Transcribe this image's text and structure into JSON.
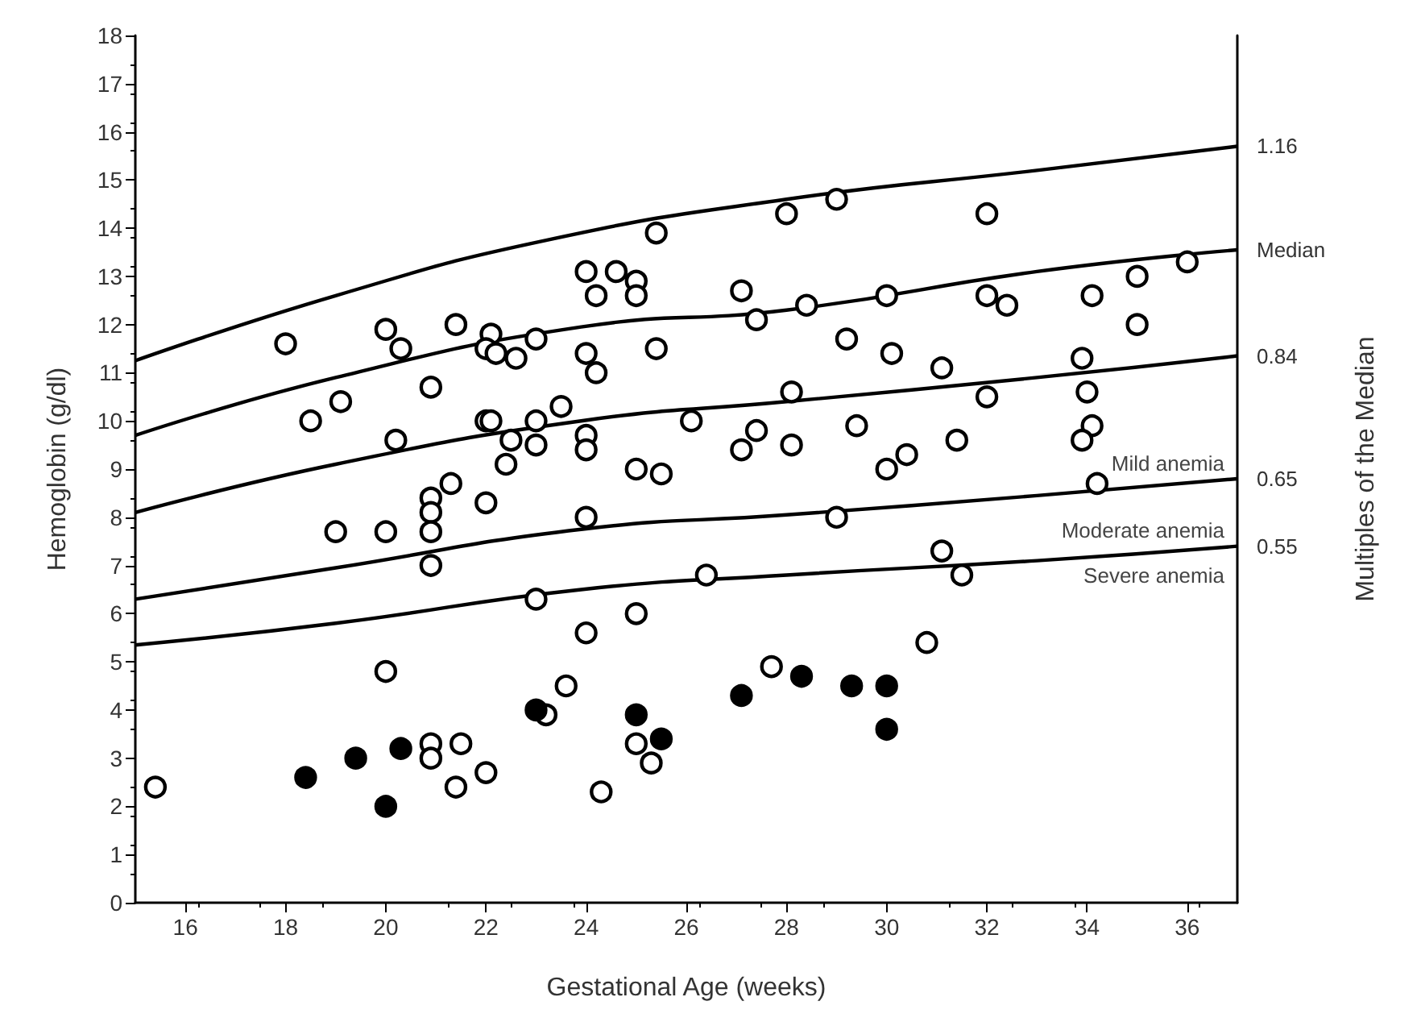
{
  "chart_data": {
    "type": "scatter",
    "xlabel": "Gestational Age (weeks)",
    "ylabel": "Hemoglobin (g/dl)",
    "y2label": "Multiples of the Median",
    "xlim": [
      15,
      37
    ],
    "xticks": [
      16,
      18,
      20,
      22,
      24,
      26,
      28,
      30,
      32,
      34,
      36
    ],
    "ylim": [
      0,
      18
    ],
    "yticks": [
      0,
      1,
      2,
      3,
      4,
      5,
      6,
      7,
      8,
      9,
      10,
      11,
      12,
      13,
      14,
      15,
      16,
      17,
      18
    ],
    "grid": false,
    "legend": false,
    "marker": "circle",
    "series": [
      {
        "type": "line",
        "name": "1.16",
        "color": "#000000",
        "marker": "none",
        "x": [
          15,
          19,
          23.2,
          28,
          33,
          37
        ],
        "values": [
          11.25,
          12.6,
          13.75,
          14.6,
          15.2,
          15.7
        ]
      },
      {
        "type": "line",
        "name": "Median",
        "color": "#000000",
        "marker": "none",
        "x": [
          15,
          19,
          23.9,
          28,
          33,
          37
        ],
        "values": [
          9.7,
          10.9,
          11.95,
          12.3,
          13.1,
          13.55
        ]
      },
      {
        "type": "line",
        "name": "0.84",
        "color": "#000000",
        "marker": "none",
        "x": [
          15,
          19,
          23.9,
          28,
          33,
          37
        ],
        "values": [
          8.1,
          9.1,
          10.0,
          10.4,
          10.9,
          11.35
        ]
      },
      {
        "type": "line",
        "name": "0.65",
        "color": "#000000",
        "marker": "none",
        "x": [
          15,
          19,
          23.9,
          28,
          33,
          37
        ],
        "values": [
          6.3,
          6.95,
          7.75,
          8.05,
          8.45,
          8.8
        ]
      },
      {
        "type": "line",
        "name": "0.55",
        "color": "#000000",
        "marker": "none",
        "x": [
          15,
          19,
          23.9,
          28,
          33,
          37
        ],
        "values": [
          5.35,
          5.8,
          6.5,
          6.8,
          7.1,
          7.4
        ]
      },
      {
        "type": "scatter",
        "color": "#ffffff",
        "x": [
          18,
          18.5,
          19.1,
          20,
          20.3,
          20.2,
          20.9,
          21.4,
          22.1,
          22,
          22.2,
          22.6,
          23,
          22,
          22.1,
          22.5,
          23,
          23,
          23.5,
          22.4,
          21.3,
          25.4,
          28,
          29,
          32,
          24,
          24.6,
          25,
          24.2,
          25,
          27.1,
          28.4,
          27.4,
          30,
          32,
          32.4,
          34.1,
          35,
          36,
          35,
          24,
          24.2,
          25.4,
          29.2,
          30.1,
          31.1,
          33.9,
          24,
          24,
          26.1,
          27.4,
          27.1,
          28.1,
          28.1,
          29.4,
          30.4,
          30,
          31.4,
          32,
          34,
          34.1,
          33.9,
          25,
          25.5,
          34.2,
          15.4,
          19,
          20,
          20.9,
          20.9,
          20.9,
          20.9,
          22,
          23,
          20,
          24,
          23.6,
          23.2,
          20.9,
          20.9,
          21.5,
          21.4,
          22,
          24,
          29,
          31.1,
          31.5,
          26.4,
          25,
          30.8,
          27.7,
          25,
          25.3,
          24.3
        ],
        "values": [
          11.6,
          10,
          10.4,
          11.9,
          11.5,
          9.6,
          10.7,
          12,
          11.8,
          11.5,
          11.4,
          11.3,
          11.7,
          10,
          10,
          9.6,
          10,
          9.5,
          10.3,
          9.1,
          8.7,
          13.9,
          14.3,
          14.6,
          14.3,
          13.1,
          13.1,
          12.9,
          12.6,
          12.6,
          12.7,
          12.4,
          12.1,
          12.6,
          12.6,
          12.4,
          12.6,
          13,
          13.3,
          12,
          11.4,
          11,
          11.5,
          11.7,
          11.4,
          11.1,
          11.3,
          9.7,
          9.4,
          10,
          9.8,
          9.4,
          9.5,
          10.6,
          9.9,
          9.3,
          9,
          9.6,
          10.5,
          10.6,
          9.9,
          9.6,
          9,
          8.9,
          8.7,
          2.4,
          7.7,
          7.7,
          8.4,
          8.1,
          7.7,
          7,
          8.3,
          6.3,
          4.8,
          5.6,
          4.5,
          3.9,
          3.3,
          3,
          3.3,
          2.4,
          2.7,
          8,
          8,
          7.3,
          6.8,
          6.8,
          6,
          5.4,
          4.9,
          3.3,
          2.9,
          2.3
        ]
      },
      {
        "type": "scatter",
        "color": "#000000",
        "x": [
          18.4,
          19.4,
          20,
          20.3,
          23,
          25,
          25.5,
          27.1,
          28.3,
          29.3,
          30,
          30
        ],
        "values": [
          2.6,
          3,
          2,
          3.2,
          4,
          3.9,
          3.4,
          4.3,
          4.7,
          4.5,
          4.5,
          3.6
        ]
      }
    ],
    "annotations": [
      "Mild anemia",
      "Moderate anemia",
      "Severe anemia"
    ]
  }
}
